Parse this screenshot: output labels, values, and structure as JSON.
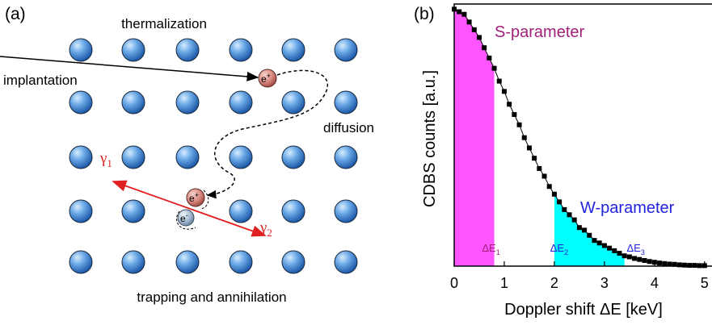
{
  "diagram": {
    "panel_label": "(a)",
    "thermalization": "thermalization",
    "implantation": "implantation",
    "diffusion": "diffusion",
    "trapping": "trapping and annihilation",
    "positron": {
      "base": "e",
      "sup": "+"
    },
    "electron": {
      "base": "e",
      "sup": "-"
    },
    "gamma_1": {
      "base": "γ",
      "sub": "1"
    },
    "gamma_2": {
      "base": "γ",
      "sub": "2"
    }
  },
  "chart_data": {
    "type": "line",
    "panel_label": "(b)",
    "x_label": "Doppler shift ΔE [keV]",
    "y_label": "CDBS counts [a.u.]",
    "x": [
      0,
      0.1,
      0.2,
      0.3,
      0.4,
      0.5,
      0.6,
      0.7,
      0.8,
      0.9,
      1,
      1.1,
      1.2,
      1.3,
      1.4,
      1.5,
      1.6,
      1.7,
      1.8,
      1.9,
      2,
      2.1,
      2.2,
      2.3,
      2.4,
      2.5,
      2.6,
      2.7,
      2.8,
      2.9,
      3,
      3.1,
      3.2,
      3.3,
      3.4,
      3.5,
      3.6,
      3.7,
      3.8,
      3.9,
      4,
      4.1,
      4.2,
      4.3,
      4.4,
      4.5,
      4.6,
      4.7,
      4.8,
      4.9,
      5
    ],
    "values": [
      1.0,
      0.99,
      0.98,
      0.95,
      0.92,
      0.89,
      0.85,
      0.81,
      0.77,
      0.72,
      0.68,
      0.63,
      0.59,
      0.55,
      0.5,
      0.46,
      0.42,
      0.38,
      0.35,
      0.31,
      0.28,
      0.25,
      0.22,
      0.2,
      0.18,
      0.15,
      0.14,
      0.12,
      0.1,
      0.09,
      0.08,
      0.07,
      0.06,
      0.05,
      0.04,
      0.036,
      0.03,
      0.026,
      0.022,
      0.018,
      0.015,
      0.012,
      0.01,
      0.008,
      0.007,
      0.005,
      0.004,
      0.003,
      0.003,
      0.002,
      0.002
    ],
    "color": "#000000",
    "xlim": [
      0,
      5.1
    ],
    "xticks": [
      0,
      1,
      2,
      3,
      4,
      5
    ],
    "ylim": [
      0,
      1.02
    ],
    "grid": false,
    "regions": [
      {
        "name": "S-parameter",
        "range": [
          0,
          0.8
        ],
        "color": "#ff55ff",
        "label_color": "#a0207a"
      },
      {
        "name": "W-parameter",
        "range": [
          2,
          3.4
        ],
        "color": "#00ffff",
        "label_color": "#2222dd"
      }
    ],
    "delta_labels": [
      {
        "text": "ΔE",
        "sub": "1",
        "color": "#a0207a"
      },
      {
        "text": "ΔE",
        "sub": "2",
        "color": "#2222dd"
      },
      {
        "text": "ΔE",
        "sub": "3",
        "color": "#2222dd"
      }
    ]
  }
}
